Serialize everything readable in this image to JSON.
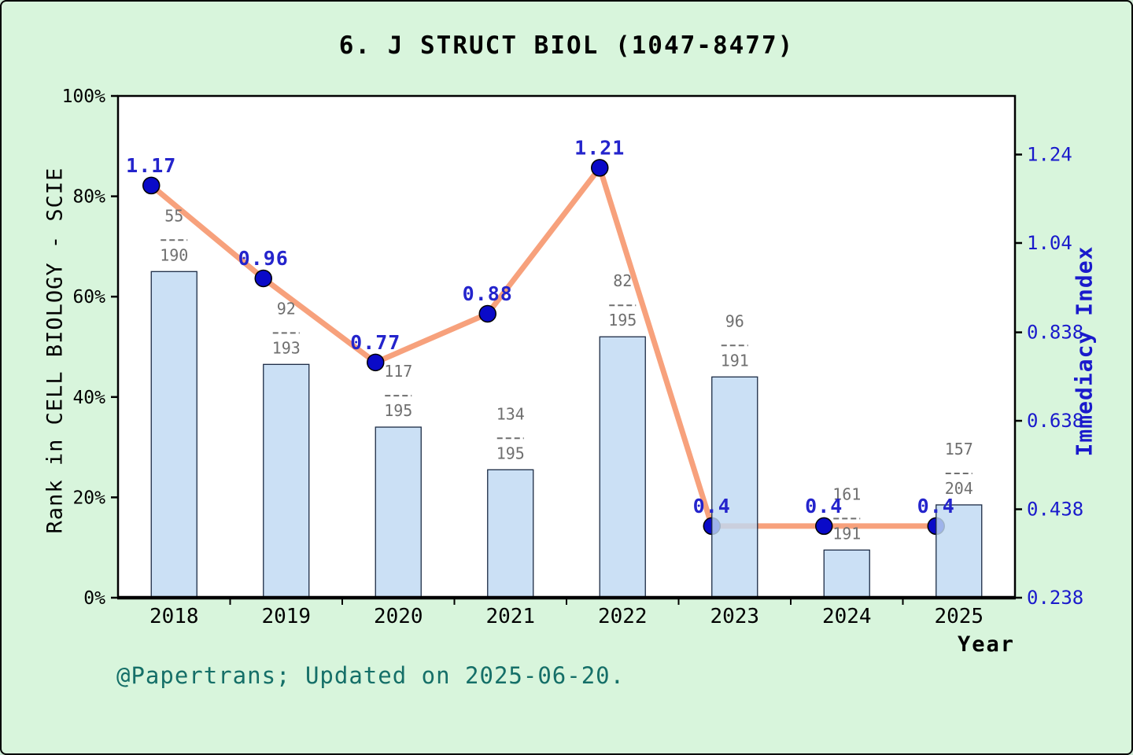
{
  "title": "6. J STRUCT BIOL (1047-8477)",
  "footer": "@Papertrans; Updated on 2025-06-20.",
  "chart_data": {
    "type": "bar",
    "subtype": "bar-line-combo",
    "categories": [
      "2018",
      "2019",
      "2020",
      "2021",
      "2022",
      "2023",
      "2024",
      "2025"
    ],
    "xlabel": "Year",
    "left_axis": {
      "label": "Rank in CELL BIOLOGY - SCIE",
      "tick_labels": [
        "0%",
        "20%",
        "40%",
        "60%",
        "80%",
        "100%"
      ],
      "tick_values": [
        0,
        20,
        40,
        60,
        80,
        100
      ],
      "range": [
        0,
        100
      ]
    },
    "right_axis": {
      "label": "Immediacy Index",
      "tick_labels": [
        "0.238",
        "0.438",
        "0.638",
        "0.838",
        "1.04",
        "1.24"
      ],
      "tick_values": [
        0.238,
        0.438,
        0.638,
        0.838,
        1.04,
        1.24
      ],
      "range": [
        0.238,
        1.371
      ]
    },
    "series": [
      {
        "name": "Rank in category (bar, left axis, %)",
        "type": "bar",
        "values": [
          65,
          46.5,
          34,
          25.5,
          52,
          44,
          9.5,
          18.5
        ],
        "fraction_labels": [
          {
            "numerator": "55",
            "denominator": "190"
          },
          {
            "numerator": "92",
            "denominator": "193"
          },
          {
            "numerator": "117",
            "denominator": "195"
          },
          {
            "numerator": "134",
            "denominator": "195"
          },
          {
            "numerator": "82",
            "denominator": "195"
          },
          {
            "numerator": "96",
            "denominator": "191"
          },
          {
            "numerator": "161",
            "denominator": "191"
          },
          {
            "numerator": "157",
            "denominator": "204"
          }
        ]
      },
      {
        "name": "Immediacy Index (line, right axis)",
        "type": "line",
        "values": [
          1.17,
          0.96,
          0.77,
          0.88,
          1.21,
          0.4,
          0.4,
          0.4
        ],
        "point_labels": [
          "1.17",
          "0.96",
          "0.77",
          "0.88",
          "1.21",
          "0.4",
          "0.4",
          "0.4"
        ]
      }
    ],
    "grid": false,
    "legend": "none",
    "colors": {
      "background": "#d8f5dc",
      "plot_background": "#ffffff",
      "frame": "#000000",
      "bar_fill": "#bfd9f3",
      "bar_border": "#1c2b45",
      "line": "#f7a17c",
      "point": "#0a0ac8",
      "point_label": "#2424cc",
      "right_tick_label": "#1a1acc",
      "fraction_label": "#6f6f6f",
      "footer_text": "#156f68"
    }
  }
}
